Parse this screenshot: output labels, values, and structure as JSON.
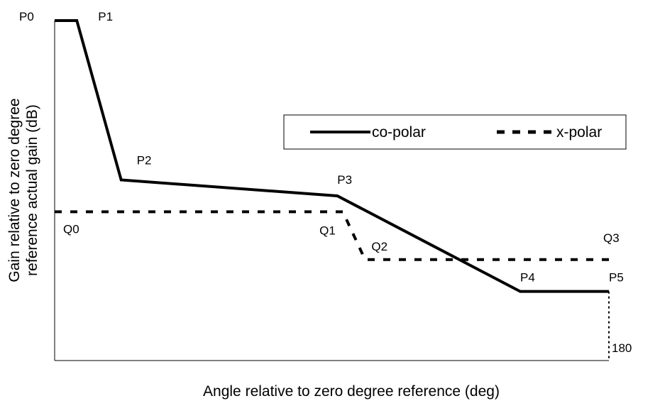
{
  "chart_data": {
    "type": "line",
    "title": "",
    "xlabel": "Angle relative to zero degree reference (deg)",
    "ylabel_lines": [
      "Gain relative to zero degree",
      "reference actual gain (dB)"
    ],
    "end_tick_label": "180",
    "grid": false,
    "legend_position": "upper-right",
    "series": [
      {
        "name": "co-polar",
        "style": "solid",
        "color": "#000000",
        "points": [
          {
            "label": "P0",
            "x": 0,
            "y": 100
          },
          {
            "label": "P1",
            "x": 4,
            "y": 100
          },
          {
            "label": "P2",
            "x": 12,
            "y": 50
          },
          {
            "label": "P3",
            "x": 51,
            "y": 45
          },
          {
            "label": "P4",
            "x": 84,
            "y": 15
          },
          {
            "label": "P5",
            "x": 100,
            "y": 15
          }
        ]
      },
      {
        "name": "x-polar",
        "style": "dashed",
        "color": "#000000",
        "points": [
          {
            "label": "Q0",
            "x": 0,
            "y": 40
          },
          {
            "label": "Q1",
            "x": 52,
            "y": 40
          },
          {
            "label": "Q2",
            "x": 56,
            "y": 25
          },
          {
            "label": "Q3",
            "x": 100,
            "y": 25
          }
        ]
      }
    ]
  }
}
